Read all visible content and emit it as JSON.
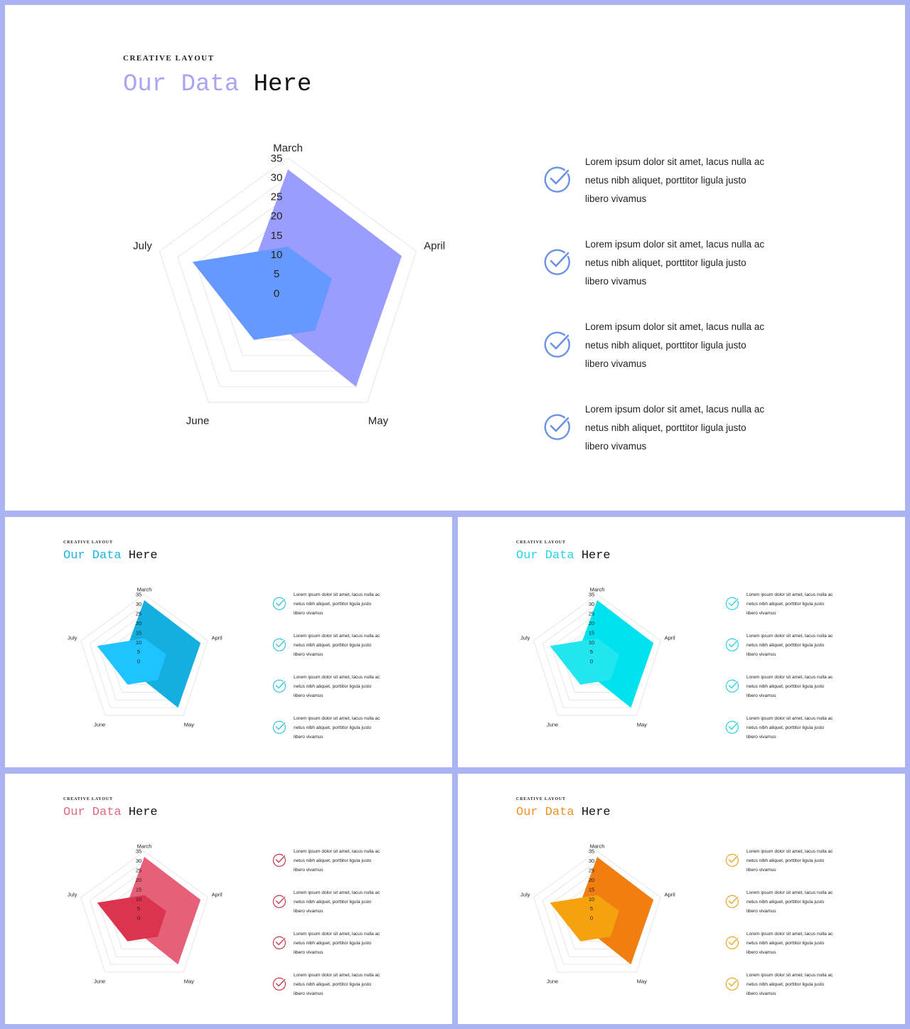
{
  "slides": [
    {
      "kicker": "CREATIVE LAYOUT",
      "title_accent": "Our Data",
      "title_rest": "Here",
      "accent_color": "#aaa5f2",
      "check_color": "#6b92e6",
      "series_colors": [
        "#9a9dfc",
        "#6699ff"
      ],
      "list": [
        "Lorem ipsum dolor sit amet, lacus nulla ac netus nibh aliquet, porttitor ligula justo libero vivamus",
        "Lorem ipsum dolor sit amet, lacus nulla ac netus nibh aliquet, porttitor ligula justo libero vivamus",
        "Lorem ipsum dolor sit amet, lacus nulla ac netus nibh aliquet, porttitor ligula justo libero vivamus",
        "Lorem ipsum dolor sit amet, lacus nulla ac netus nibh aliquet, porttitor ligula justo libero vivamus"
      ]
    },
    {
      "kicker": "CREATIVE LAYOUT",
      "title_accent": "Our Data",
      "title_rest": "Here",
      "accent_color": "#1ab5e3",
      "check_color": "#3cc5d9",
      "series_colors": [
        "#15aee1",
        "#1ec3ff"
      ],
      "list": [
        "Lorem ipsum dolor sit amet, lacus nulla ac netus nibh aliquet, porttitor ligula justo libero vivamus",
        "Lorem ipsum dolor sit amet, lacus nulla ac netus nibh aliquet, porttitor ligula justo libero vivamus",
        "Lorem ipsum dolor sit amet, lacus nulla ac netus nibh aliquet, porttitor ligula justo libero vivamus",
        "Lorem ipsum dolor sit amet, lacus nulla ac netus nibh aliquet, porttitor ligula justo libero vivamus"
      ]
    },
    {
      "kicker": "CREATIVE LAYOUT",
      "title_accent": "Our Data",
      "title_rest": "Here",
      "accent_color": "#27d6e6",
      "check_color": "#2fd1e0",
      "series_colors": [
        "#00e3ee",
        "#22e6ef"
      ],
      "list": [
        "Lorem ipsum dolor sit amet, lacus nulla ac netus nibh aliquet, porttitor ligula justo libero vivamus",
        "Lorem ipsum dolor sit amet, lacus nulla ac netus nibh aliquet, porttitor ligula justo libero vivamus",
        "Lorem ipsum dolor sit amet, lacus nulla ac netus nibh aliquet, porttitor ligula justo libero vivamus",
        "Lorem ipsum dolor sit amet, lacus nulla ac netus nibh aliquet, porttitor ligula justo libero vivamus"
      ]
    },
    {
      "kicker": "CREATIVE LAYOUT",
      "title_accent": "Our Data",
      "title_rest": "Here",
      "accent_color": "#e0697e",
      "check_color": "#c8384b",
      "series_colors": [
        "#e66077",
        "#dc3350"
      ],
      "list": [
        "Lorem ipsum dolor sit amet, lacus nulla ac netus nibh aliquet, porttitor ligula justo libero vivamus",
        "Lorem ipsum dolor sit amet, lacus nulla ac netus nibh aliquet, porttitor ligula justo libero vivamus",
        "Lorem ipsum dolor sit amet, lacus nulla ac netus nibh aliquet, porttitor ligula justo libero vivamus",
        "Lorem ipsum dolor sit amet, lacus nulla ac netus nibh aliquet, porttitor ligula justo libero vivamus"
      ]
    },
    {
      "kicker": "CREATIVE LAYOUT",
      "title_accent": "Our Data",
      "title_rest": "Here",
      "accent_color": "#ee9322",
      "check_color": "#e8a72a",
      "series_colors": [
        "#f07e10",
        "#f5a20f"
      ],
      "list": [
        "Lorem ipsum dolor sit amet, lacus nulla ac netus nibh aliquet, porttitor ligula justo libero vivamus",
        "Lorem ipsum dolor sit amet, lacus nulla ac netus nibh aliquet, porttitor ligula justo libero vivamus",
        "Lorem ipsum dolor sit amet, lacus nulla ac netus nibh aliquet, porttitor ligula justo libero vivamus",
        "Lorem ipsum dolor sit amet, lacus nulla ac netus nibh aliquet, porttitor ligula justo libero vivamus"
      ]
    }
  ],
  "chart_data": {
    "type": "radar",
    "categories": [
      "March",
      "April",
      "May",
      "June",
      "July"
    ],
    "tick_labels": [
      "0",
      "5",
      "10",
      "15",
      "20",
      "25",
      "30",
      "35"
    ],
    "ylim": [
      0,
      35
    ],
    "grid": true,
    "series": [
      {
        "values": [
          32,
          31,
          30,
          8,
          11
        ]
      },
      {
        "values": [
          12,
          12,
          12,
          15,
          26
        ]
      }
    ]
  }
}
